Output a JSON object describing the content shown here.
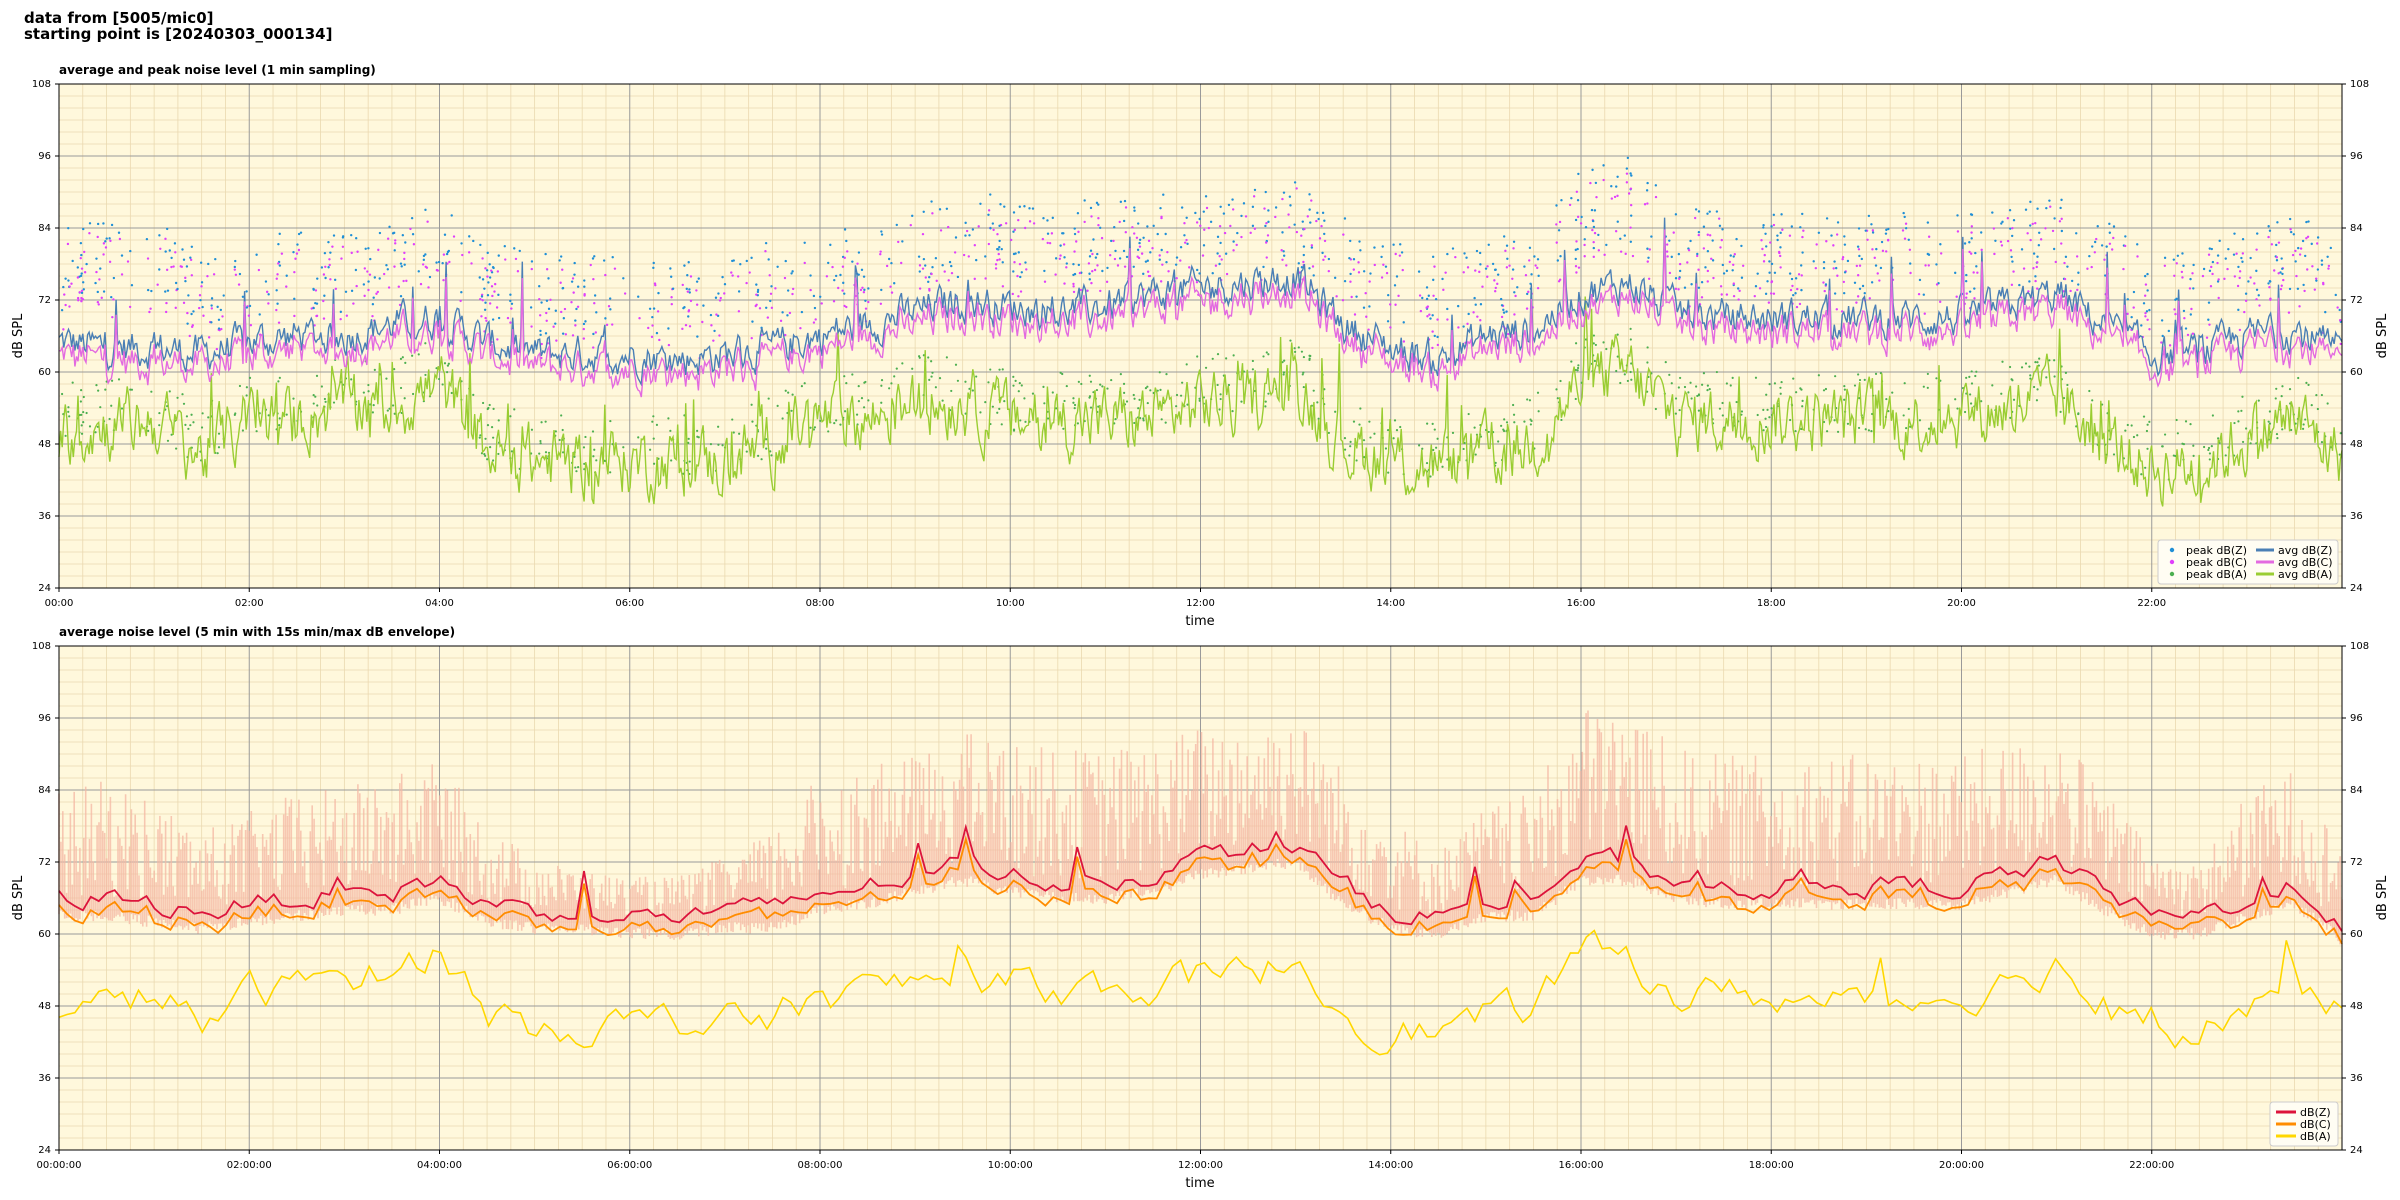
{
  "header": {
    "line1": "data from [5005/mic0]",
    "line2": "starting point is [20240303_000134]"
  },
  "chart_data": [
    {
      "type": "line",
      "title": "average and peak noise level (1 min sampling)",
      "xlabel": "time",
      "ylabel": "dB SPL",
      "ylim": [
        24,
        108
      ],
      "xlim_hours": [
        0,
        24
      ],
      "yticks": [
        "24",
        "36",
        "48",
        "60",
        "72",
        "84",
        "96",
        "108"
      ],
      "xticks": [
        "00:00",
        "02:00",
        "04:00",
        "06:00",
        "08:00",
        "10:00",
        "12:00",
        "14:00",
        "16:00",
        "18:00",
        "20:00",
        "22:00"
      ],
      "grid": true,
      "legend_position": "bottom-right",
      "background": "#fff8dc",
      "series": [
        {
          "name": "peak dB(Z)",
          "kind": "points",
          "color": "#1f8fd6"
        },
        {
          "name": "peak dB(C)",
          "kind": "points",
          "color": "#e040fb"
        },
        {
          "name": "peak dB(A)",
          "kind": "points",
          "color": "#4caf50"
        },
        {
          "name": "avg dB(Z)",
          "kind": "line",
          "color": "#4a7fb5"
        },
        {
          "name": "avg dB(C)",
          "kind": "line",
          "color": "#e36ae0"
        },
        {
          "name": "avg dB(A)",
          "kind": "line",
          "color": "#9acd32"
        }
      ],
      "profile_hours": [
        0,
        0.5,
        1,
        1.5,
        2,
        2.5,
        3,
        3.5,
        4,
        4.5,
        5,
        5.5,
        6,
        6.5,
        7,
        7.5,
        8,
        8.5,
        9,
        9.5,
        10,
        10.5,
        11,
        11.5,
        12,
        12.5,
        13,
        13.5,
        14,
        14.5,
        15,
        15.5,
        16,
        16.5,
        17,
        17.5,
        18,
        18.5,
        19,
        19.5,
        20,
        20.5,
        21,
        21.5,
        22,
        22.5,
        23,
        23.5,
        24
      ],
      "avgZ_profile": [
        65,
        64,
        64,
        63,
        65,
        66,
        66,
        68,
        69,
        65,
        63,
        63,
        63,
        62,
        63,
        64,
        66,
        68,
        70,
        72,
        71,
        70,
        71,
        73,
        74,
        75,
        76,
        68,
        64,
        62,
        66,
        67,
        73,
        75,
        70,
        69,
        69,
        69,
        69,
        69,
        69,
        71,
        73,
        68,
        63,
        63,
        66,
        67,
        63
      ],
      "avgA_profile": [
        50,
        51,
        52,
        46,
        52,
        52,
        55,
        54,
        58,
        47,
        45,
        45,
        45,
        45,
        45,
        48,
        52,
        52,
        55,
        55,
        52,
        52,
        52,
        52,
        55,
        55,
        58,
        48,
        45,
        44,
        46,
        48,
        58,
        60,
        52,
        52,
        52,
        52,
        52,
        52,
        53,
        54,
        56,
        48,
        44,
        44,
        49,
        52,
        46
      ],
      "peakZ_profile": [
        74,
        76,
        76,
        70,
        73,
        75,
        74,
        76,
        78,
        73,
        70,
        70,
        70,
        69,
        70,
        72,
        74,
        75,
        78,
        80,
        80,
        79,
        79,
        80,
        80,
        81,
        82,
        76,
        72,
        70,
        73,
        75,
        84,
        86,
        78,
        77,
        77,
        77,
        77,
        77,
        77,
        78,
        80,
        76,
        70,
        70,
        75,
        78,
        72
      ]
    },
    {
      "type": "line",
      "title": "average noise level (5 min with 15s min/max dB envelope)",
      "xlabel": "time",
      "ylabel": "dB SPL",
      "ylim": [
        24,
        108
      ],
      "xlim_hours": [
        0,
        24
      ],
      "yticks": [
        "24",
        "36",
        "48",
        "60",
        "72",
        "84",
        "96",
        "108"
      ],
      "xticks": [
        "00:00:00",
        "02:00:00",
        "04:00:00",
        "06:00:00",
        "08:00:00",
        "10:00:00",
        "12:00:00",
        "14:00:00",
        "16:00:00",
        "18:00:00",
        "20:00:00",
        "22:00:00"
      ],
      "grid": true,
      "legend_position": "bottom-right",
      "background": "#fff8dc",
      "series": [
        {
          "name": "dB(Z)",
          "kind": "line",
          "color": "#dc143c"
        },
        {
          "name": "dB(C)",
          "kind": "line",
          "color": "#ff8c00"
        },
        {
          "name": "dB(A)",
          "kind": "line",
          "color": "#ffd700"
        }
      ],
      "envelope_color": "#f4b7a3",
      "profile_hours": [
        0,
        0.5,
        1,
        1.5,
        2,
        2.5,
        3,
        3.5,
        4,
        4.5,
        5,
        5.5,
        6,
        6.5,
        7,
        7.5,
        8,
        8.5,
        9,
        9.5,
        10,
        10.5,
        11,
        11.5,
        12,
        12.5,
        13,
        13.5,
        14,
        14.5,
        15,
        15.5,
        16,
        16.5,
        17,
        17.5,
        18,
        18.5,
        19,
        19.5,
        20,
        20.5,
        21,
        21.5,
        22,
        22.5,
        23,
        23.5,
        24
      ],
      "Z_profile": [
        66,
        66,
        65,
        64,
        65,
        66,
        67,
        67,
        69,
        65,
        64,
        64,
        63,
        63,
        64,
        64,
        67,
        68,
        70,
        72,
        70,
        69,
        69,
        70,
        73,
        74,
        75,
        68,
        64,
        63,
        66,
        66,
        72,
        72,
        69,
        68,
        68,
        68,
        68,
        68,
        68,
        70,
        72,
        67,
        63,
        63,
        66,
        68,
        62
      ],
      "A_profile": [
        47,
        48,
        50,
        45,
        50,
        51,
        54,
        53,
        58,
        47,
        45,
        45,
        45,
        45,
        45,
        46,
        50,
        50,
        52,
        53,
        52,
        51,
        51,
        51,
        53,
        53,
        56,
        47,
        44,
        44,
        46,
        48,
        57,
        56,
        50,
        50,
        50,
        48,
        49,
        49,
        50,
        52,
        55,
        47,
        44,
        44,
        48,
        52,
        46
      ],
      "env_spread_profile": [
        8,
        9,
        8,
        6,
        7,
        8,
        8,
        9,
        9,
        6,
        4,
        3,
        3,
        3,
        4,
        6,
        9,
        9,
        9,
        10,
        10,
        10,
        10,
        10,
        10,
        10,
        10,
        9,
        7,
        5,
        7,
        8,
        12,
        12,
        10,
        10,
        10,
        10,
        10,
        10,
        10,
        10,
        10,
        8,
        5,
        4,
        8,
        9,
        6
      ]
    }
  ]
}
